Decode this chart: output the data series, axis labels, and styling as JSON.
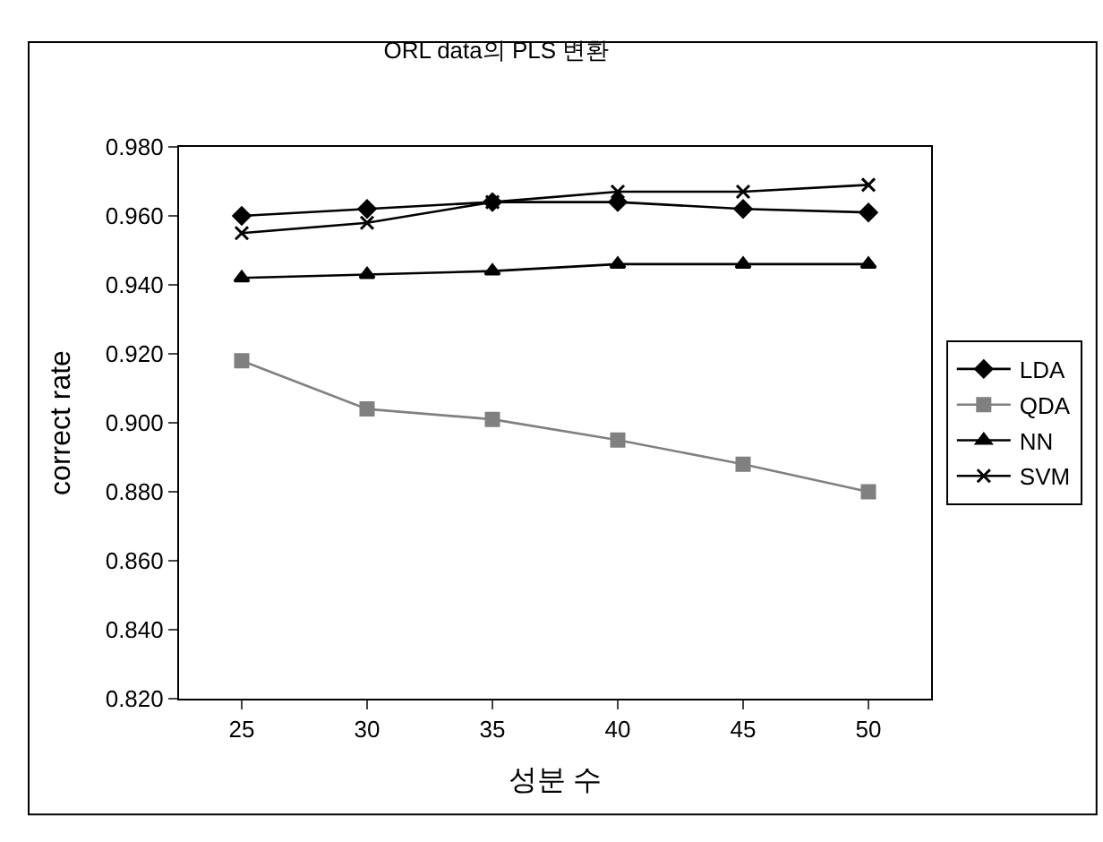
{
  "chart_data": {
    "type": "line",
    "title": "ORL data의 PLS 변환",
    "xlabel": "성분 수",
    "ylabel": "correct rate",
    "categories": [
      "25",
      "30",
      "35",
      "40",
      "45",
      "50"
    ],
    "series": [
      {
        "name": "LDA",
        "color": "#000000",
        "marker": "diamond",
        "values": [
          0.96,
          0.962,
          0.964,
          0.964,
          0.962,
          0.961
        ]
      },
      {
        "name": "QDA",
        "color": "#808080",
        "marker": "square",
        "values": [
          0.918,
          0.904,
          0.901,
          0.895,
          0.888,
          0.88
        ]
      },
      {
        "name": "NN",
        "color": "#000000",
        "marker": "triangle",
        "values": [
          0.942,
          0.943,
          0.944,
          0.946,
          0.946,
          0.946
        ]
      },
      {
        "name": "SVM",
        "color": "#000000",
        "marker": "cross",
        "values": [
          0.955,
          0.958,
          0.964,
          0.967,
          0.967,
          0.969
        ]
      }
    ],
    "ylim": [
      0.82,
      0.98
    ],
    "yticks": [
      {
        "value": 0.82,
        "label": "0.820"
      },
      {
        "value": 0.84,
        "label": "0.840"
      },
      {
        "value": 0.86,
        "label": "0.860"
      },
      {
        "value": 0.88,
        "label": "0.880"
      },
      {
        "value": 0.9,
        "label": "0.900"
      },
      {
        "value": 0.92,
        "label": "0.920"
      },
      {
        "value": 0.94,
        "label": "0.940"
      },
      {
        "value": 0.96,
        "label": "0.960"
      },
      {
        "value": 0.98,
        "label": "0.980"
      }
    ],
    "grid": false,
    "legend": "right",
    "line_style": "solid"
  }
}
